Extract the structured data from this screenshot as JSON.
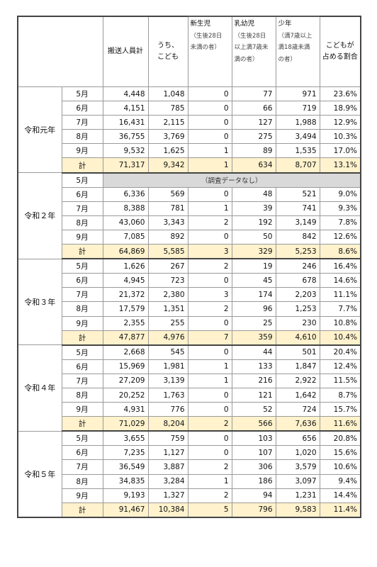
{
  "headers": {
    "total": "搬送人員計",
    "children_1": "うち、",
    "children_2": "こども",
    "newborn": "新生児",
    "newborn_note_1": "（生後28日",
    "newborn_note_2": "未満の者）",
    "infant": "乳幼児",
    "infant_note_1": "（生後28日",
    "infant_note_2": "以上満7歳未",
    "infant_note_3": "満の者）",
    "youth": "少年",
    "youth_note_1": "（満7歳以上",
    "youth_note_2": "満18歳未満",
    "youth_note_3": "の者）",
    "ratio_1": "こどもが",
    "ratio_2": "占める割合"
  },
  "no_data_label": "（調査データなし）",
  "years": [
    {
      "label": "令和元年",
      "rows": [
        {
          "month": "5月",
          "total": "4,448",
          "children": "1,048",
          "newborn": "0",
          "infant": "77",
          "youth": "971",
          "ratio": "23.6%"
        },
        {
          "month": "6月",
          "total": "4,151",
          "children": "785",
          "newborn": "0",
          "infant": "66",
          "youth": "719",
          "ratio": "18.9%"
        },
        {
          "month": "7月",
          "total": "16,431",
          "children": "2,115",
          "newborn": "0",
          "infant": "127",
          "youth": "1,988",
          "ratio": "12.9%"
        },
        {
          "month": "8月",
          "total": "36,755",
          "children": "3,769",
          "newborn": "0",
          "infant": "275",
          "youth": "3,494",
          "ratio": "10.3%"
        },
        {
          "month": "9月",
          "total": "9,532",
          "children": "1,625",
          "newborn": "1",
          "infant": "89",
          "youth": "1,535",
          "ratio": "17.0%"
        },
        {
          "month": "計",
          "total": "71,317",
          "children": "9,342",
          "newborn": "1",
          "infant": "634",
          "youth": "8,707",
          "ratio": "13.1%"
        }
      ]
    },
    {
      "label": "令和２年",
      "rows": [
        {
          "month": "5月",
          "nodata": true
        },
        {
          "month": "6月",
          "total": "6,336",
          "children": "569",
          "newborn": "0",
          "infant": "48",
          "youth": "521",
          "ratio": "9.0%"
        },
        {
          "month": "7月",
          "total": "8,388",
          "children": "781",
          "newborn": "1",
          "infant": "39",
          "youth": "741",
          "ratio": "9.3%"
        },
        {
          "month": "8月",
          "total": "43,060",
          "children": "3,343",
          "newborn": "2",
          "infant": "192",
          "youth": "3,149",
          "ratio": "7.8%"
        },
        {
          "month": "9月",
          "total": "7,085",
          "children": "892",
          "newborn": "0",
          "infant": "50",
          "youth": "842",
          "ratio": "12.6%"
        },
        {
          "month": "計",
          "total": "64,869",
          "children": "5,585",
          "newborn": "3",
          "infant": "329",
          "youth": "5,253",
          "ratio": "8.6%"
        }
      ]
    },
    {
      "label": "令和３年",
      "rows": [
        {
          "month": "5月",
          "total": "1,626",
          "children": "267",
          "newborn": "2",
          "infant": "19",
          "youth": "246",
          "ratio": "16.4%"
        },
        {
          "month": "6月",
          "total": "4,945",
          "children": "723",
          "newborn": "0",
          "infant": "45",
          "youth": "678",
          "ratio": "14.6%"
        },
        {
          "month": "7月",
          "total": "21,372",
          "children": "2,380",
          "newborn": "3",
          "infant": "174",
          "youth": "2,203",
          "ratio": "11.1%"
        },
        {
          "month": "8月",
          "total": "17,579",
          "children": "1,351",
          "newborn": "2",
          "infant": "96",
          "youth": "1,253",
          "ratio": "7.7%"
        },
        {
          "month": "9月",
          "total": "2,355",
          "children": "255",
          "newborn": "0",
          "infant": "25",
          "youth": "230",
          "ratio": "10.8%"
        },
        {
          "month": "計",
          "total": "47,877",
          "children": "4,976",
          "newborn": "7",
          "infant": "359",
          "youth": "4,610",
          "ratio": "10.4%"
        }
      ]
    },
    {
      "label": "令和４年",
      "rows": [
        {
          "month": "5月",
          "total": "2,668",
          "children": "545",
          "newborn": "0",
          "infant": "44",
          "youth": "501",
          "ratio": "20.4%"
        },
        {
          "month": "6月",
          "total": "15,969",
          "children": "1,981",
          "newborn": "1",
          "infant": "133",
          "youth": "1,847",
          "ratio": "12.4%"
        },
        {
          "month": "7月",
          "total": "27,209",
          "children": "3,139",
          "newborn": "1",
          "infant": "216",
          "youth": "2,922",
          "ratio": "11.5%"
        },
        {
          "month": "8月",
          "total": "20,252",
          "children": "1,763",
          "newborn": "0",
          "infant": "121",
          "youth": "1,642",
          "ratio": "8.7%"
        },
        {
          "month": "9月",
          "total": "4,931",
          "children": "776",
          "newborn": "0",
          "infant": "52",
          "youth": "724",
          "ratio": "15.7%"
        },
        {
          "month": "計",
          "total": "71,029",
          "children": "8,204",
          "newborn": "2",
          "infant": "566",
          "youth": "7,636",
          "ratio": "11.6%"
        }
      ]
    },
    {
      "label": "令和５年",
      "rows": [
        {
          "month": "5月",
          "total": "3,655",
          "children": "759",
          "newborn": "0",
          "infant": "103",
          "youth": "656",
          "ratio": "20.8%"
        },
        {
          "month": "6月",
          "total": "7,235",
          "children": "1,127",
          "newborn": "0",
          "infant": "107",
          "youth": "1,020",
          "ratio": "15.6%"
        },
        {
          "month": "7月",
          "total": "36,549",
          "children": "3,887",
          "newborn": "2",
          "infant": "306",
          "youth": "3,579",
          "ratio": "10.6%"
        },
        {
          "month": "8月",
          "total": "34,835",
          "children": "3,284",
          "newborn": "1",
          "infant": "186",
          "youth": "3,097",
          "ratio": "9.4%"
        },
        {
          "month": "9月",
          "total": "9,193",
          "children": "1,327",
          "newborn": "2",
          "infant": "94",
          "youth": "1,231",
          "ratio": "14.4%"
        },
        {
          "month": "計",
          "total": "91,467",
          "children": "10,384",
          "newborn": "5",
          "infant": "796",
          "youth": "9,583",
          "ratio": "11.4%"
        }
      ]
    }
  ]
}
